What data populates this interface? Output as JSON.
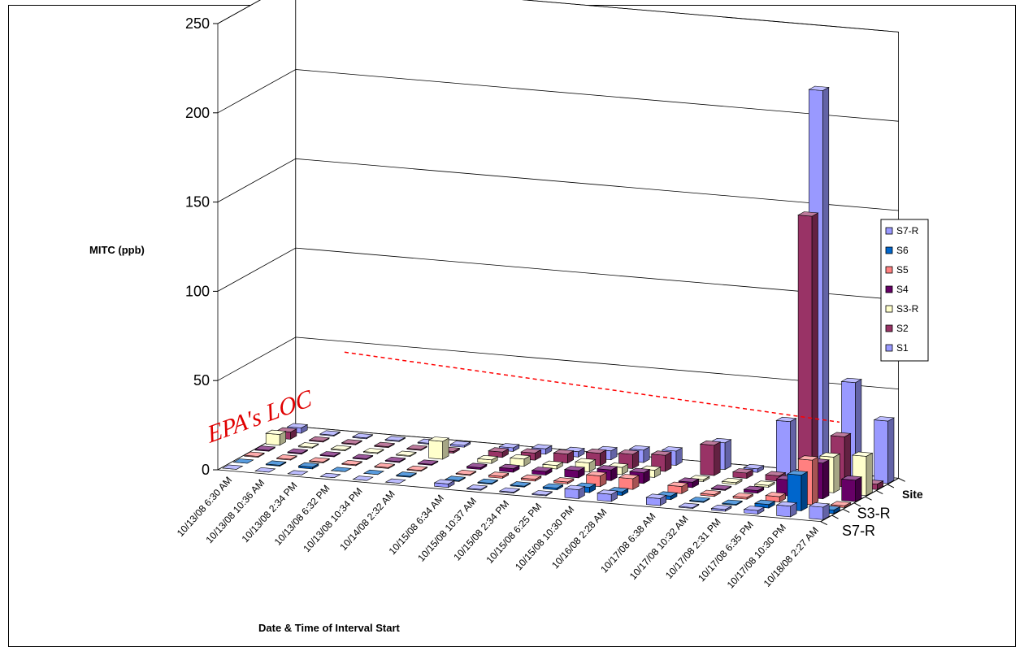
{
  "chart_data": {
    "type": "bar",
    "ylabel": "MITC (ppb)",
    "xlabel": "Date & Time of Interval Start",
    "zlabel": "Site",
    "ylim": [
      0,
      250
    ],
    "yticks": [
      0,
      50,
      100,
      150,
      200,
      250
    ],
    "categories": [
      "10/13/08 6:30 AM",
      "10/13/08 10:36 AM",
      "10/13/08 2:34 PM",
      "10/13/08 6:32 PM",
      "10/13/08 10:34 PM",
      "10/14/08 2:32 AM",
      "10/15/08 6:34 AM",
      "10/15/08 10:37 AM",
      "10/15/08 2:34 PM",
      "10/15/08 6:25 PM",
      "10/15/08 10:30 PM",
      "10/16/08 2:28 AM",
      "10/17/08 6:38 AM",
      "10/17/08 10:32 AM",
      "10/17/08 2:31 PM",
      "10/17/08 6:35 PM",
      "10/17/08 10:30 PM",
      "10/18/08 2:27 AM"
    ],
    "category_slots": [
      0,
      2,
      4,
      6,
      8,
      10,
      13,
      15,
      17,
      19,
      21,
      23,
      26,
      28,
      30,
      32,
      34,
      36
    ],
    "series": [
      {
        "name": "S7-R",
        "color": "#9999ff",
        "values": [
          0,
          0,
          0,
          0,
          0,
          0,
          2,
          0.5,
          0.5,
          0.5,
          5,
          4,
          4,
          0.5,
          1,
          2,
          6,
          7
        ]
      },
      {
        "name": "S6",
        "color": "#0066cc",
        "values": [
          0,
          0.5,
          1,
          0,
          0,
          0.5,
          0.5,
          0.5,
          0.5,
          1,
          3,
          2,
          2,
          0.5,
          0.5,
          2,
          20,
          2
        ]
      },
      {
        "name": "S5",
        "color": "#ff8080",
        "values": [
          0.5,
          0.5,
          0.5,
          0.5,
          0.5,
          0.5,
          0.5,
          1,
          1,
          1,
          6,
          6,
          4,
          1,
          1,
          3,
          25,
          1
        ]
      },
      {
        "name": "S4",
        "color": "#660066",
        "values": [
          0.5,
          0.5,
          0.5,
          0.5,
          0.5,
          0.5,
          1,
          2,
          2,
          4,
          6,
          6,
          3,
          0.5,
          1.5,
          9,
          20,
          12
        ]
      },
      {
        "name": "S3-R",
        "color": "#ffffcc",
        "values": [
          6,
          0.5,
          0.5,
          0.5,
          0.5,
          10,
          2,
          4,
          2,
          5,
          4,
          4,
          1,
          1,
          1,
          8,
          20,
          22
        ]
      },
      {
        "name": "S2",
        "color": "#993366",
        "values": [
          4,
          0.5,
          0.5,
          0.5,
          0.5,
          1,
          3,
          4,
          5,
          7,
          8,
          9,
          17,
          3,
          3,
          150,
          28,
          3
        ]
      },
      {
        "name": "S1",
        "color": "#9999ff",
        "values": [
          3,
          0.5,
          0.5,
          0.5,
          0.5,
          1,
          2,
          3,
          3,
          5,
          7,
          8,
          15,
          2,
          30,
          217,
          55,
          35
        ]
      }
    ],
    "loc_line": {
      "value": 44,
      "label": "EPA's LOC",
      "color": "#ff0000"
    },
    "z_ticks": [
      "S3-R",
      "S7-R"
    ],
    "legend_position": "right",
    "legend_order": [
      "S7-R",
      "S6",
      "S5",
      "S4",
      "S3-R",
      "S2",
      "S1"
    ],
    "grid": true
  }
}
